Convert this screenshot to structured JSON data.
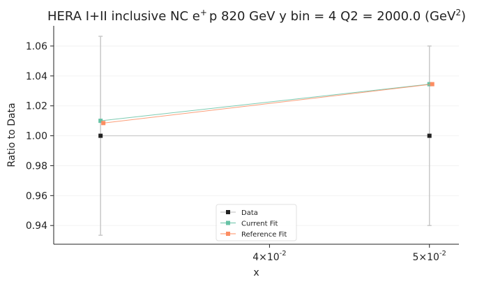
{
  "chart_data": {
    "type": "line",
    "title_prefix": "HERA I+II inclusive NC e",
    "title_superscript": "+",
    "title_middle": "p 820 GeV y bin = 4 Q2 = 2000.0 (GeV",
    "title_unit_superscript": "2",
    "title_suffix": ")",
    "xlabel": "x",
    "ylabel": "Ratio to Data",
    "x_scale": "log",
    "x_ticks": [
      {
        "value": 0.04,
        "mantissa": "4",
        "exponent": "-2"
      },
      {
        "value": 0.05,
        "mantissa": "5",
        "exponent": "-2"
      }
    ],
    "x_tick_times": "×10",
    "xlim": [
      0.0296,
      0.0521
    ],
    "y_ticks": [
      0.94,
      0.96,
      0.98,
      1.0,
      1.02,
      1.04,
      1.06
    ],
    "y_tick_labels": [
      "0.94",
      "0.96",
      "0.98",
      "1.00",
      "1.02",
      "1.04",
      "1.06"
    ],
    "ylim": [
      0.9275,
      1.0735
    ],
    "grid": false,
    "legend_position": "lower center",
    "series": [
      {
        "name": "Data",
        "color": "#222222",
        "line_color": "#bbbbbb",
        "marker": "square",
        "points": [
          {
            "x": 0.0316,
            "y": 1.0,
            "yerr": 0.0665
          },
          {
            "x": 0.05,
            "y": 1.0,
            "yerr": 0.06
          }
        ]
      },
      {
        "name": "Current Fit",
        "color": "#66c2a5",
        "marker": "square",
        "points": [
          {
            "x": 0.0316,
            "y": 1.01
          },
          {
            "x": 0.05,
            "y": 1.0345
          }
        ]
      },
      {
        "name": "Reference Fit",
        "color": "#fc8d62",
        "marker": "square",
        "points": [
          {
            "x": 0.0316,
            "y": 1.0085
          },
          {
            "x": 0.05,
            "y": 1.0345
          }
        ]
      }
    ]
  }
}
